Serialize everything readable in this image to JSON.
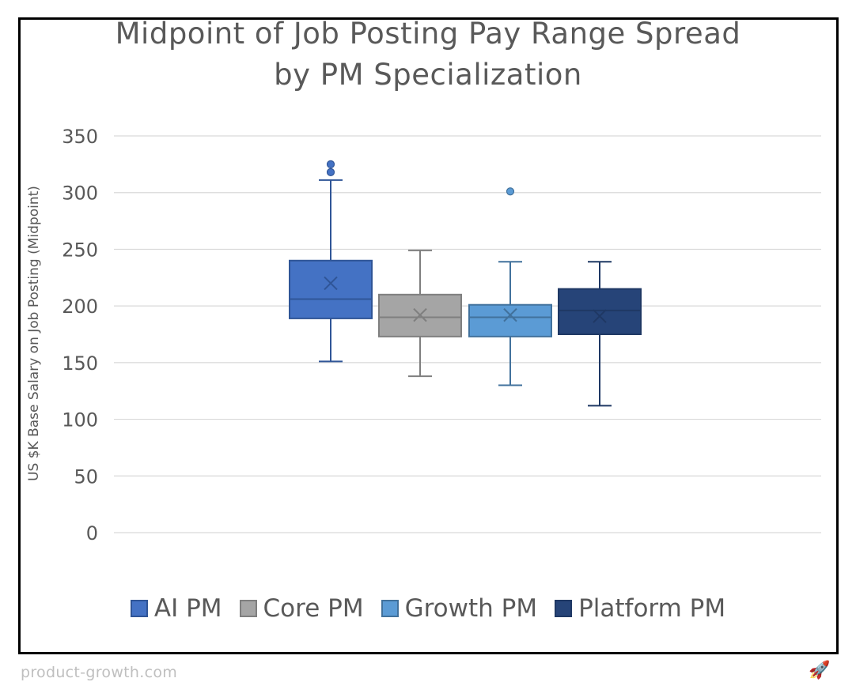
{
  "chart_data": {
    "type": "box",
    "title_lines": [
      "Midpoint of Job Posting Pay Range Spread",
      "by PM Specialization"
    ],
    "xlabel": "",
    "ylabel": "US $K Base Salary on Job Posting (Midpoint)",
    "ylim": [
      0,
      350
    ],
    "yticks": [
      0,
      50,
      100,
      150,
      200,
      250,
      300,
      350
    ],
    "grid": true,
    "legend_position": "bottom",
    "series": [
      {
        "name": "AI PM",
        "color": "#4472c4",
        "border": "#2f5597",
        "whisker_color": "#2f5597",
        "min": 151,
        "q1": 189,
        "median": 206,
        "q3": 240,
        "max": 311,
        "mean": 220,
        "outliers": [
          318,
          325
        ]
      },
      {
        "name": "Core PM",
        "color": "#a5a5a5",
        "border": "#7f7f7f",
        "whisker_color": "#7f7f7f",
        "min": 138,
        "q1": 173,
        "median": 190,
        "q3": 210,
        "max": 249,
        "mean": 192,
        "outliers": []
      },
      {
        "name": "Growth PM",
        "color": "#5b9bd5",
        "border": "#41719c",
        "whisker_color": "#41719c",
        "min": 130,
        "q1": 173,
        "median": 190,
        "q3": 201,
        "max": 239,
        "mean": 192,
        "outliers": [
          301
        ]
      },
      {
        "name": "Platform PM",
        "color": "#264478",
        "border": "#1f3864",
        "whisker_color": "#1f3864",
        "min": 112,
        "q1": 175,
        "median": 196,
        "q3": 215,
        "max": 239,
        "mean": 191,
        "outliers": []
      }
    ]
  },
  "footer": {
    "site": "product-growth.com",
    "icon": "rocket-icon"
  }
}
